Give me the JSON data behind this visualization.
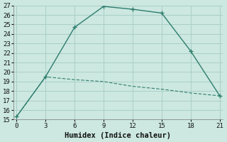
{
  "xlabel": "Humidex (Indice chaleur)",
  "ylabel": "",
  "bg_color": "#cce8e0",
  "grid_color": "#aacfc8",
  "line_color": "#2e7d6e",
  "line1_x": [
    0,
    3,
    6,
    9,
    12,
    15,
    18,
    21
  ],
  "line1_y": [
    15.3,
    19.5,
    24.7,
    26.9,
    26.6,
    26.2,
    22.2,
    17.5
  ],
  "line2_x": [
    0,
    3,
    6,
    9,
    12,
    15,
    18,
    21
  ],
  "line2_y": [
    15.3,
    19.5,
    19.2,
    19.0,
    18.5,
    18.2,
    17.8,
    17.5
  ],
  "xlim": [
    0,
    21
  ],
  "ylim": [
    15,
    27
  ],
  "xticks": [
    0,
    3,
    6,
    9,
    12,
    15,
    18,
    21
  ],
  "yticks": [
    15,
    16,
    17,
    18,
    19,
    20,
    21,
    22,
    23,
    24,
    25,
    26,
    27
  ],
  "xlabel_fontsize": 7.5,
  "tick_fontsize": 6.5
}
